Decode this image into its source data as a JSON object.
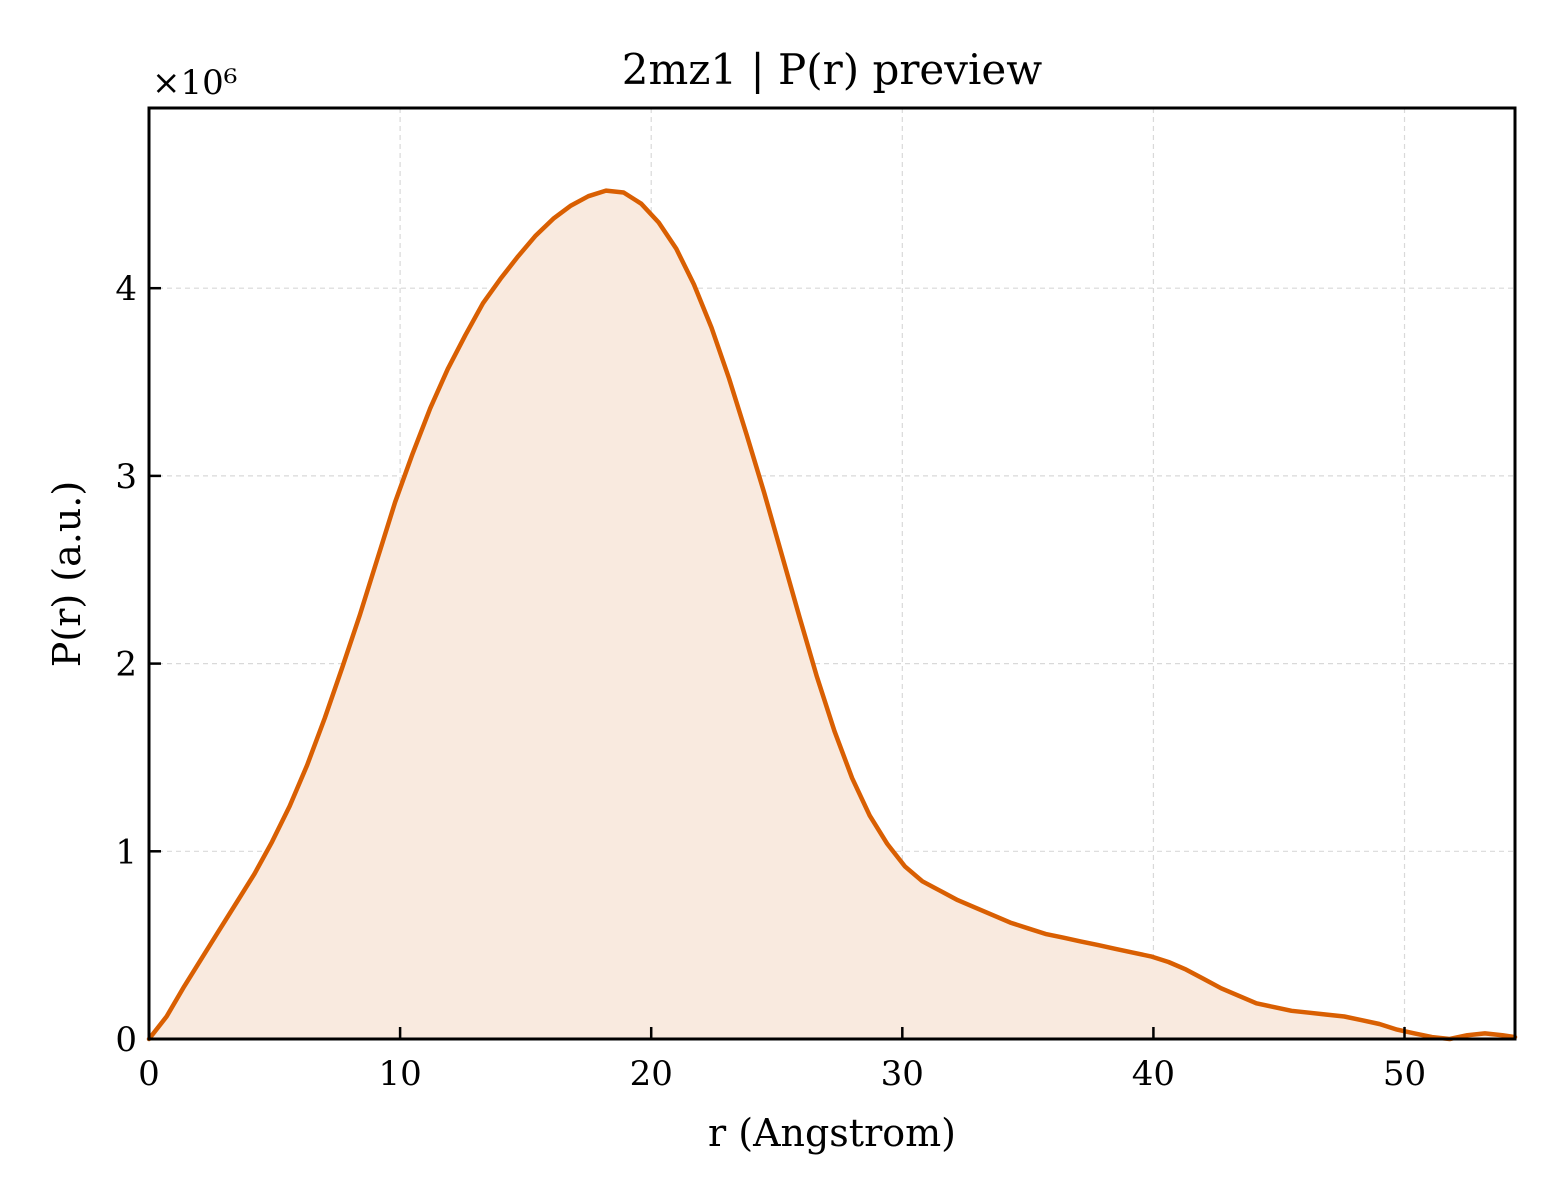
{
  "chart_data": {
    "type": "area",
    "title": "2mz1 | P(r) preview",
    "xlabel": "r (Angstrom)",
    "ylabel": "P(r) (a.u.)",
    "y_offset_label": "×10⁶",
    "y_scale": 1000000,
    "xlim": [
      0,
      54.4
    ],
    "ylim": [
      0,
      4.96
    ],
    "x_ticks": [
      0,
      10,
      20,
      30,
      40,
      50
    ],
    "y_ticks": [
      0,
      1,
      2,
      3,
      4
    ],
    "grid": true,
    "line_color": "#d95f02",
    "fill_color": "#f9eadf",
    "series": [
      {
        "x": [
          0,
          0.7,
          1.4,
          2.1,
          2.8,
          3.5,
          4.2,
          4.9,
          5.6,
          6.3,
          7.0,
          7.7,
          8.4,
          9.1,
          9.8,
          10.5,
          11.2,
          11.9,
          12.6,
          13.3,
          14.0,
          14.7,
          15.4,
          16.1,
          16.8,
          17.5,
          18.2,
          18.9,
          19.6,
          20.3,
          21.0,
          21.7,
          22.4,
          23.1,
          23.8,
          24.5,
          25.2,
          25.9,
          26.6,
          27.3,
          28.0,
          28.7,
          29.4,
          30.1,
          30.8,
          31.5,
          32.2,
          32.9,
          33.6,
          34.3,
          35.0,
          35.7,
          36.4,
          37.1,
          37.8,
          38.5,
          39.2,
          39.9,
          40.6,
          41.3,
          42.0,
          42.7,
          43.4,
          44.1,
          44.8,
          45.5,
          46.2,
          46.9,
          47.6,
          48.3,
          49.0,
          49.7,
          50.4,
          51.1,
          51.8,
          52.5,
          53.2,
          53.9,
          54.4
        ],
        "y": [
          0,
          0.12,
          0.28,
          0.43,
          0.58,
          0.73,
          0.88,
          1.05,
          1.24,
          1.46,
          1.71,
          1.98,
          2.26,
          2.56,
          2.86,
          3.12,
          3.36,
          3.57,
          3.75,
          3.92,
          4.05,
          4.17,
          4.28,
          4.37,
          4.44,
          4.49,
          4.52,
          4.51,
          4.45,
          4.35,
          4.21,
          4.02,
          3.79,
          3.52,
          3.22,
          2.91,
          2.58,
          2.25,
          1.93,
          1.64,
          1.39,
          1.19,
          1.04,
          0.92,
          0.84,
          0.79,
          0.74,
          0.7,
          0.66,
          0.62,
          0.59,
          0.56,
          0.54,
          0.52,
          0.5,
          0.48,
          0.46,
          0.44,
          0.41,
          0.37,
          0.32,
          0.27,
          0.23,
          0.19,
          0.17,
          0.15,
          0.14,
          0.13,
          0.12,
          0.1,
          0.08,
          0.05,
          0.03,
          0.01,
          0.0,
          0.02,
          0.03,
          0.02,
          0.01
        ]
      }
    ]
  }
}
